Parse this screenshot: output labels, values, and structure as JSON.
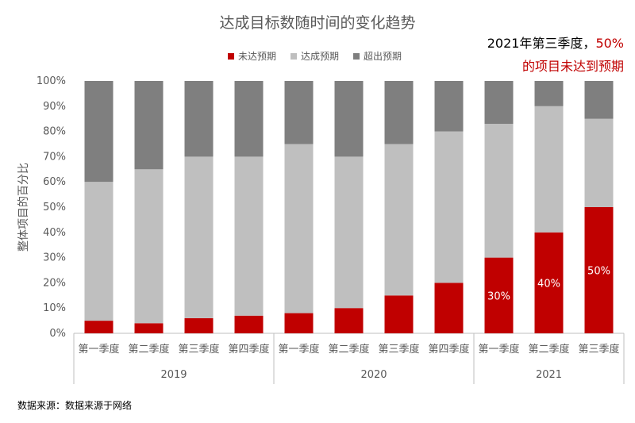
{
  "chart_data": {
    "type": "bar",
    "stacked": true,
    "title": "达成目标数随时间的变化趋势",
    "ylabel": "整体项目的百分比",
    "ylim": [
      0,
      100
    ],
    "yticks": [
      "0%",
      "10%",
      "20%",
      "30%",
      "40%",
      "50%",
      "60%",
      "70%",
      "80%",
      "90%",
      "100%"
    ],
    "categories": [
      "第一季度",
      "第二季度",
      "第三季度",
      "第四季度",
      "第一季度",
      "第二季度",
      "第三季度",
      "第四季度",
      "第一季度",
      "第二季度",
      "第三季度"
    ],
    "groups": [
      {
        "label": "2019",
        "count": 4
      },
      {
        "label": "2020",
        "count": 4
      },
      {
        "label": "2021",
        "count": 3
      }
    ],
    "series": [
      {
        "name": "未达预期",
        "color": "#c00000",
        "values": [
          5,
          4,
          6,
          7,
          8,
          10,
          15,
          20,
          30,
          40,
          50
        ]
      },
      {
        "name": "达成预期",
        "color": "#bfbfbf",
        "values": [
          55,
          61,
          64,
          63,
          67,
          60,
          60,
          60,
          53,
          50,
          35
        ]
      },
      {
        "name": "超出预期",
        "color": "#7f7f7f",
        "values": [
          40,
          35,
          30,
          30,
          25,
          30,
          25,
          20,
          17,
          10,
          15
        ]
      }
    ],
    "data_labels": [
      {
        "index": 8,
        "text": "30%"
      },
      {
        "index": 9,
        "text": "40%"
      },
      {
        "index": 10,
        "text": "50%"
      }
    ],
    "legend_position": "top",
    "grid": false
  },
  "annotation": {
    "line1_prefix": "2021年第三季度，",
    "line1_highlight": "50%",
    "line2": "的项目未达到预期"
  },
  "source": "数据来源：数据来源于网络"
}
